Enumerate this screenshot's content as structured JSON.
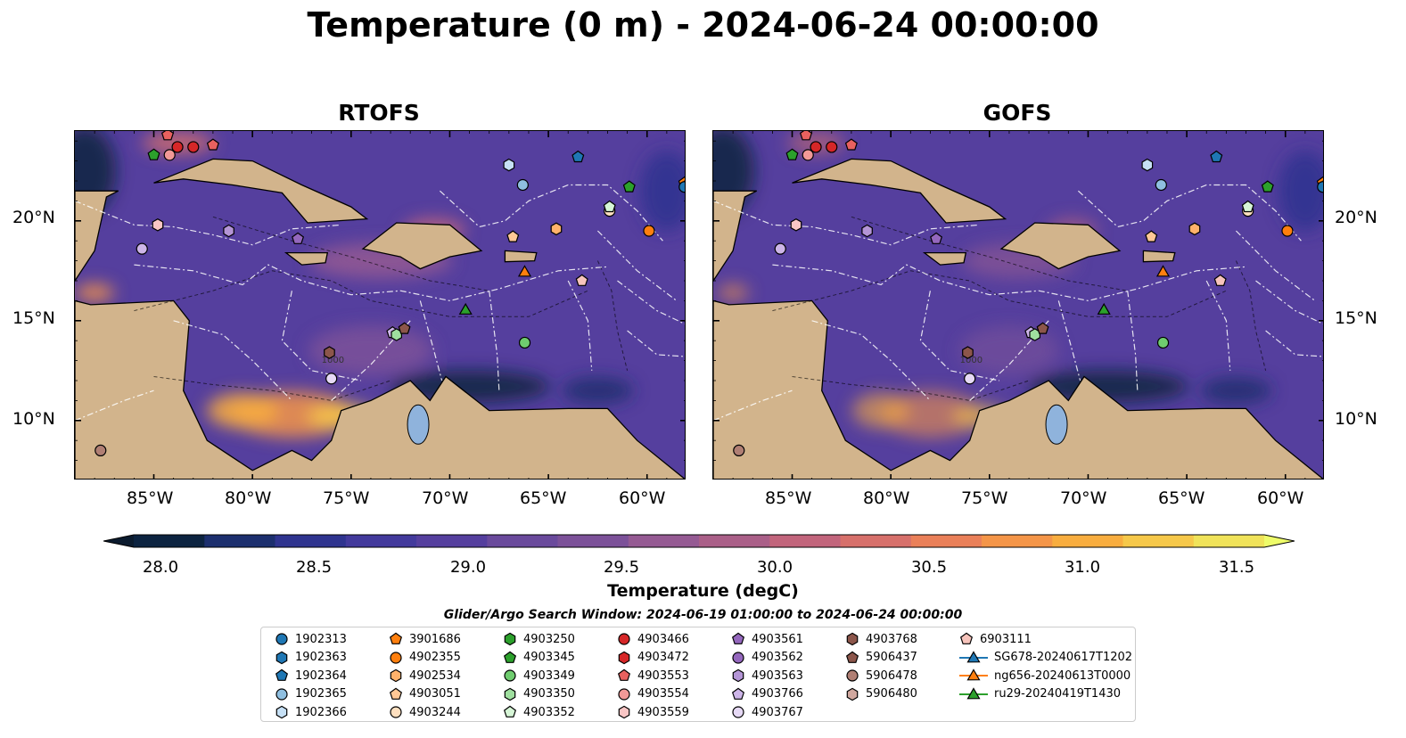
{
  "title": "Temperature (0 m) - 2024-06-24 00:00:00",
  "panels": [
    {
      "title": "RTOFS"
    },
    {
      "title": "GOFS"
    }
  ],
  "map": {
    "extent_lon": [
      -89,
      -58
    ],
    "extent_lat": [
      7,
      24.5
    ],
    "lon_ticks": [
      "85°W",
      "80°W",
      "75°W",
      "70°W",
      "65°W",
      "60°W"
    ],
    "lat_ticks": [
      "20°N",
      "15°N",
      "10°N"
    ],
    "land_color": "#d2b48c",
    "contour_label": "1000"
  },
  "colorbar": {
    "label": "Temperature (degC)",
    "ticks": [
      "28.0",
      "28.5",
      "29.0",
      "29.5",
      "30.0",
      "30.5",
      "31.0",
      "31.5"
    ],
    "range": [
      28.0,
      31.5
    ],
    "colors": [
      "#0c2340",
      "#1c2f6e",
      "#2f348f",
      "#433a9c",
      "#553f9e",
      "#6a4a9c",
      "#7c5199",
      "#955a93",
      "#aa5f88",
      "#c2657c",
      "#d7706b",
      "#ea8059",
      "#f49548",
      "#f8ad3f",
      "#f6c84a",
      "#f0e35a"
    ]
  },
  "search_window": "Glider/Argo Search Window: 2024-06-19 01:00:00 to 2024-06-24 00:00:00",
  "legend": [
    [
      "1902313",
      "1902363",
      "1902364",
      "1902365",
      "1902366"
    ],
    [
      "3901686",
      "4902355",
      "4902534",
      "4903051",
      "4903244"
    ],
    [
      "4903250",
      "4903345",
      "4903349",
      "4903350",
      "4903352"
    ],
    [
      "4903466",
      "4903472",
      "4903553",
      "4903554",
      "4903559"
    ],
    [
      "4903561",
      "4903562",
      "4903563",
      "4903766",
      "4903767"
    ],
    [
      "4903768",
      "5906437",
      "5906478",
      "5906480"
    ],
    [
      "6903111",
      "SG678-20240617T1202",
      "ng656-20240613T0000",
      "ru29-20240419T1430"
    ]
  ],
  "legend_styles": [
    [
      [
        "circle",
        "#1f77b4"
      ],
      [
        "hex",
        "#1f77b4"
      ],
      [
        "pent",
        "#1f77b4"
      ],
      [
        "circle",
        "#8fbfe0"
      ],
      [
        "hex",
        "#c6e0f5"
      ]
    ],
    [
      [
        "pent",
        "#ff7f0e"
      ],
      [
        "circle",
        "#ff7f0e"
      ],
      [
        "hex",
        "#ffb26b"
      ],
      [
        "pent",
        "#ffc896"
      ],
      [
        "circle",
        "#ffe0c0"
      ]
    ],
    [
      [
        "hex",
        "#2ca02c"
      ],
      [
        "pent",
        "#2ca02c"
      ],
      [
        "circle",
        "#6fcc6f"
      ],
      [
        "hex",
        "#9fdf9f"
      ],
      [
        "pent",
        "#d6f5d6"
      ]
    ],
    [
      [
        "circle",
        "#d62728"
      ],
      [
        "hex",
        "#d62728"
      ],
      [
        "pent",
        "#e8615f"
      ],
      [
        "circle",
        "#f29997"
      ],
      [
        "hex",
        "#f9c6c5"
      ]
    ],
    [
      [
        "pent",
        "#9467bd"
      ],
      [
        "circle",
        "#9467bd"
      ],
      [
        "hex",
        "#b495d6"
      ],
      [
        "pent",
        "#cdb5e8"
      ],
      [
        "circle",
        "#e6d9f5"
      ]
    ],
    [
      [
        "hex",
        "#8c564b"
      ],
      [
        "pent",
        "#8c564b"
      ],
      [
        "circle",
        "#b07f74"
      ],
      [
        "hex",
        "#d1a89f"
      ]
    ],
    [
      [
        "pent",
        "#f7c4bc"
      ],
      [
        "tri",
        "#1f77b4"
      ],
      [
        "tri",
        "#ff7f0e"
      ],
      [
        "tri",
        "#2ca02c"
      ]
    ]
  ],
  "floats": [
    {
      "lon": -84.2,
      "lat": 23.3,
      "shape": "circle",
      "color": "#f29997"
    },
    {
      "lon": -83.8,
      "lat": 23.7,
      "shape": "circle",
      "color": "#d62728"
    },
    {
      "lon": -84.3,
      "lat": 24.3,
      "shape": "pent",
      "color": "#e8615f"
    },
    {
      "lon": -83.0,
      "lat": 23.7,
      "shape": "circle",
      "color": "#d62728"
    },
    {
      "lon": -82.0,
      "lat": 23.8,
      "shape": "pent",
      "color": "#e8615f"
    },
    {
      "lon": -85.0,
      "lat": 23.3,
      "shape": "pent",
      "color": "#2ca02c"
    },
    {
      "lon": -84.8,
      "lat": 19.8,
      "shape": "hex",
      "color": "#f9c6c5"
    },
    {
      "lon": -85.6,
      "lat": 18.6,
      "shape": "circle",
      "color": "#cdb5e8"
    },
    {
      "lon": -81.2,
      "lat": 19.5,
      "shape": "hex",
      "color": "#b495d6"
    },
    {
      "lon": -77.7,
      "lat": 19.1,
      "shape": "pent",
      "color": "#9467bd"
    },
    {
      "lon": -67.0,
      "lat": 22.8,
      "shape": "hex",
      "color": "#c6e0f5"
    },
    {
      "lon": -66.3,
      "lat": 21.8,
      "shape": "circle",
      "color": "#8fbfe0"
    },
    {
      "lon": -63.5,
      "lat": 23.2,
      "shape": "pent",
      "color": "#1f77b4"
    },
    {
      "lon": -61.9,
      "lat": 20.5,
      "shape": "circle",
      "color": "#ffe0c0"
    },
    {
      "lon": -61.9,
      "lat": 20.7,
      "shape": "pent",
      "color": "#d6f5d6"
    },
    {
      "lon": -60.9,
      "lat": 21.7,
      "shape": "pent",
      "color": "#2ca02c"
    },
    {
      "lon": -58.1,
      "lat": 21.9,
      "shape": "pent",
      "color": "#ff7f0e"
    },
    {
      "lon": -58.1,
      "lat": 21.7,
      "shape": "circle",
      "color": "#1f77b4"
    },
    {
      "lon": -59.9,
      "lat": 19.5,
      "shape": "circle",
      "color": "#ff7f0e"
    },
    {
      "lon": -64.6,
      "lat": 19.6,
      "shape": "hex",
      "color": "#ffb26b"
    },
    {
      "lon": -66.8,
      "lat": 19.2,
      "shape": "pent",
      "color": "#ffc896"
    },
    {
      "lon": -63.3,
      "lat": 17.0,
      "shape": "pent",
      "color": "#f7c4bc"
    },
    {
      "lon": -76.1,
      "lat": 13.4,
      "shape": "hex",
      "color": "#8c564b"
    },
    {
      "lon": -72.9,
      "lat": 14.4,
      "shape": "pent",
      "color": "#cdb5e8"
    },
    {
      "lon": -72.7,
      "lat": 14.3,
      "shape": "hex",
      "color": "#9fdf9f"
    },
    {
      "lon": -72.3,
      "lat": 14.6,
      "shape": "pent",
      "color": "#8c564b"
    },
    {
      "lon": -76.0,
      "lat": 12.1,
      "shape": "circle",
      "color": "#e6d9f5"
    },
    {
      "lon": -66.2,
      "lat": 13.9,
      "shape": "circle",
      "color": "#6fcc6f"
    },
    {
      "lon": -87.7,
      "lat": 8.5,
      "shape": "circle",
      "color": "#b07f74"
    },
    {
      "lon": -66.2,
      "lat": 17.4,
      "shape": "tri",
      "color": "#ff7f0e"
    },
    {
      "lon": -69.2,
      "lat": 15.5,
      "shape": "tri",
      "color": "#2ca02c"
    }
  ]
}
